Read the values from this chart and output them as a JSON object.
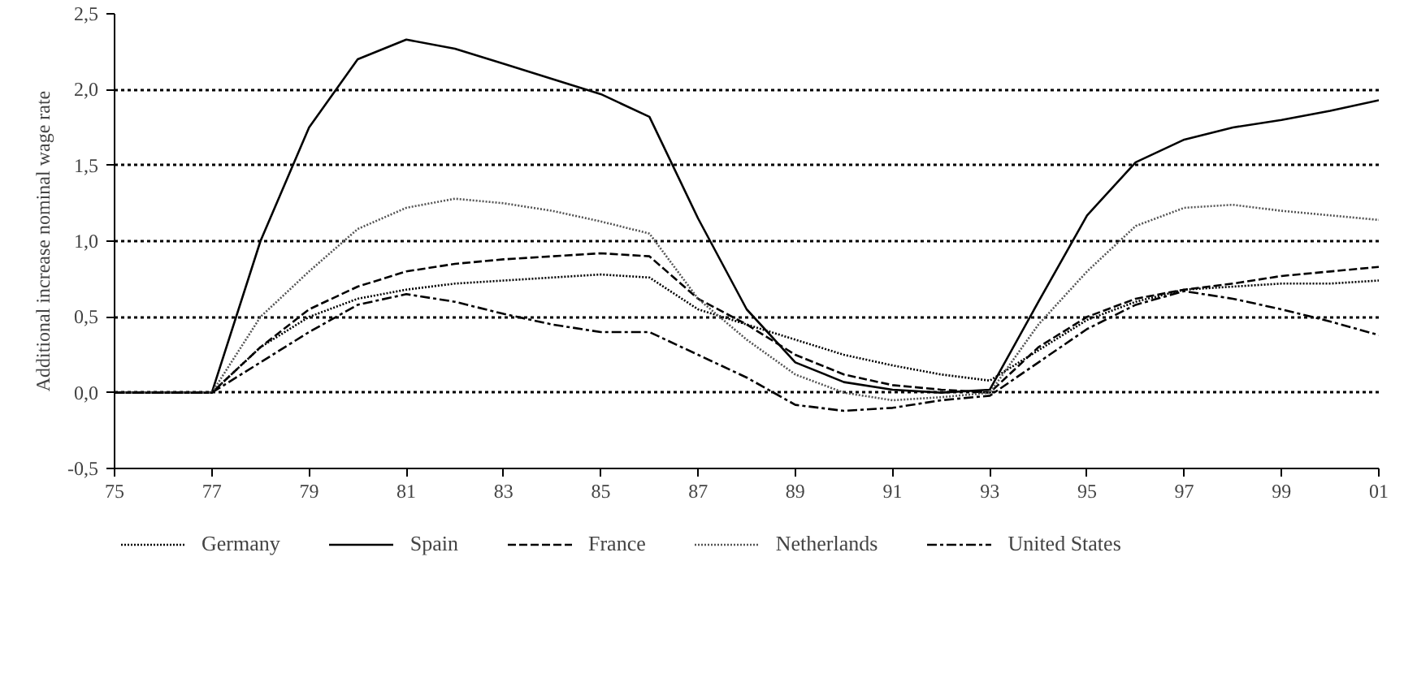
{
  "chart_data": {
    "type": "line",
    "ylabel": "Additional increase nominal wage rate",
    "x": [
      1975,
      1976,
      1977,
      1978,
      1979,
      1980,
      1981,
      1982,
      1983,
      1984,
      1985,
      1986,
      1987,
      1988,
      1989,
      1990,
      1991,
      1992,
      1993,
      1994,
      1995,
      1996,
      1997,
      1998,
      1999,
      2000,
      2001
    ],
    "xlim": [
      1975,
      2001
    ],
    "xticks": [
      {
        "value": 1975,
        "label": "75"
      },
      {
        "value": 1977,
        "label": "77"
      },
      {
        "value": 1979,
        "label": "79"
      },
      {
        "value": 1981,
        "label": "81"
      },
      {
        "value": 1983,
        "label": "83"
      },
      {
        "value": 1985,
        "label": "85"
      },
      {
        "value": 1987,
        "label": "87"
      },
      {
        "value": 1989,
        "label": "89"
      },
      {
        "value": 1991,
        "label": "91"
      },
      {
        "value": 1993,
        "label": "93"
      },
      {
        "value": 1995,
        "label": "95"
      },
      {
        "value": 1997,
        "label": "97"
      },
      {
        "value": 1999,
        "label": "99"
      },
      {
        "value": 2001,
        "label": "01"
      }
    ],
    "ylim": [
      -0.5,
      2.5
    ],
    "yticks": [
      {
        "value": -0.5,
        "label": "-0,5"
      },
      {
        "value": 0,
        "label": "0,0"
      },
      {
        "value": 0.5,
        "label": "0,5"
      },
      {
        "value": 1,
        "label": "1,0"
      },
      {
        "value": 1.5,
        "label": "1,5"
      },
      {
        "value": 2,
        "label": "2,0"
      },
      {
        "value": 2.5,
        "label": "2,5"
      }
    ],
    "grid": "y",
    "legend": "bottom",
    "marker": "none",
    "series": [
      {
        "name": "Germany",
        "color": "#000000",
        "line_style": "dotted",
        "values": [
          0,
          0,
          0,
          0.3,
          0.5,
          0.62,
          0.68,
          0.72,
          0.74,
          0.76,
          0.78,
          0.76,
          0.55,
          0.45,
          0.35,
          0.25,
          0.18,
          0.12,
          0.08,
          0.28,
          0.48,
          0.6,
          0.68,
          0.7,
          0.72,
          0.72,
          0.74
        ]
      },
      {
        "name": "Spain",
        "color": "#000000",
        "line_style": "solid",
        "values": [
          0,
          0,
          0,
          1.0,
          1.75,
          2.2,
          2.33,
          2.27,
          2.17,
          2.07,
          1.97,
          1.82,
          1.15,
          0.55,
          0.2,
          0.07,
          0.02,
          0.0,
          0.02,
          0.6,
          1.17,
          1.52,
          1.67,
          1.75,
          1.8,
          1.86,
          1.93
        ]
      },
      {
        "name": "France",
        "color": "#000000",
        "line_style": "dashed",
        "values": [
          0,
          0,
          0,
          0.3,
          0.55,
          0.7,
          0.8,
          0.85,
          0.88,
          0.9,
          0.92,
          0.9,
          0.62,
          0.45,
          0.25,
          0.12,
          0.05,
          0.02,
          0.0,
          0.3,
          0.5,
          0.62,
          0.68,
          0.72,
          0.77,
          0.8,
          0.83
        ]
      },
      {
        "name": "Netherlands",
        "color": "#555555",
        "line_style": "dotted",
        "values": [
          0,
          0,
          0,
          0.5,
          0.8,
          1.08,
          1.22,
          1.28,
          1.25,
          1.2,
          1.13,
          1.05,
          0.62,
          0.35,
          0.12,
          0.0,
          -0.05,
          -0.03,
          0.0,
          0.45,
          0.8,
          1.1,
          1.22,
          1.24,
          1.2,
          1.17,
          1.14
        ]
      },
      {
        "name": "United States",
        "color": "#000000",
        "line_style": "dashdot",
        "values": [
          0,
          0,
          0,
          0.2,
          0.4,
          0.58,
          0.65,
          0.6,
          0.52,
          0.45,
          0.4,
          0.4,
          0.25,
          0.1,
          -0.08,
          -0.12,
          -0.1,
          -0.05,
          -0.02,
          0.2,
          0.42,
          0.58,
          0.67,
          0.62,
          0.55,
          0.47,
          0.38
        ]
      }
    ]
  }
}
